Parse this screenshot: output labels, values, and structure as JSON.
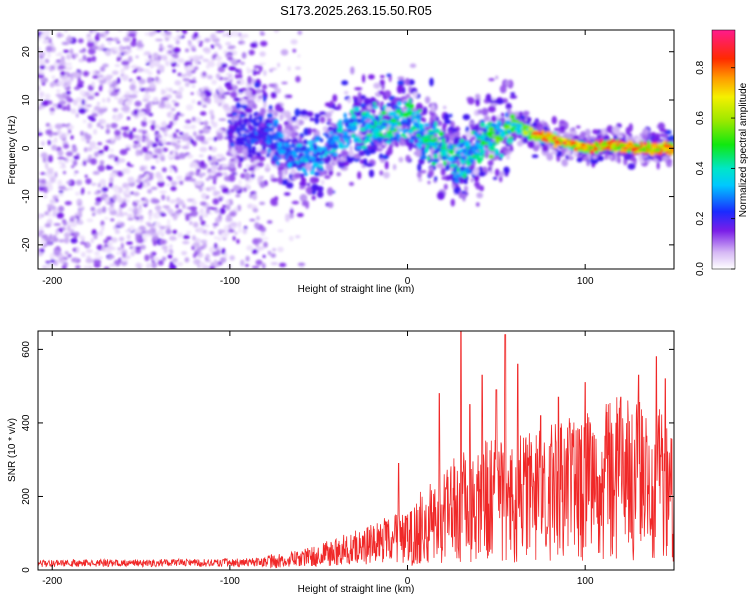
{
  "title": "S173.2025.263.15.50.R05",
  "chart_data": [
    {
      "type": "heatmap",
      "name": "spectrogram",
      "xlabel": "Height of straight line (km)",
      "ylabel": "Frequency (Hz)",
      "xlim": [
        -208,
        150
      ],
      "ylim": [
        -25,
        24.5
      ],
      "xticks": [
        -200,
        -100,
        0,
        100
      ],
      "xtick_labels": [
        "-200",
        "-100",
        "0",
        "100"
      ],
      "yticks": [
        -20,
        -10,
        0,
        10,
        20
      ],
      "ytick_labels": [
        "-20",
        "-10",
        "0",
        "10",
        "20"
      ],
      "colorbar": {
        "label": "Normalized spectral amplitude",
        "range": [
          0,
          0.95
        ],
        "ticks": [
          0.0,
          0.2,
          0.4,
          0.6,
          0.8
        ],
        "tick_labels": [
          "0.0",
          "0.2",
          "0.4",
          "0.6",
          "0.8"
        ],
        "colormap": "white-violet-blue-cyan-green-yellow-red-magenta"
      },
      "ridge": {
        "x": [
          -95,
          -80,
          -70,
          -60,
          -50,
          -40,
          -30,
          -20,
          -10,
          0,
          10,
          20,
          30,
          40,
          50,
          60,
          70,
          80,
          90,
          100,
          110,
          120,
          130,
          140,
          150
        ],
        "y": [
          4,
          3,
          0,
          -2,
          -2,
          2,
          4,
          5,
          4,
          7,
          2,
          0,
          -3,
          1,
          2,
          5,
          3,
          2,
          1,
          0,
          0.5,
          0.5,
          0,
          0,
          0
        ]
      },
      "amplitude": {
        "x": [
          -95,
          -60,
          -30,
          0,
          30,
          60,
          80,
          100,
          150
        ],
        "v": [
          0.15,
          0.25,
          0.3,
          0.35,
          0.35,
          0.45,
          0.6,
          0.8,
          0.85
        ]
      }
    },
    {
      "type": "line",
      "name": "snr",
      "xlabel": "Height of straight line (km)",
      "ylabel": "SNR (10 * v/v)",
      "xlim": [
        -208,
        150
      ],
      "ylim": [
        0,
        650
      ],
      "xticks": [
        -200,
        -100,
        0,
        100
      ],
      "xtick_labels": [
        "-200",
        "-100",
        "0",
        "100"
      ],
      "yticks": [
        0,
        200,
        400,
        600
      ],
      "ytick_labels": [
        "0",
        "200",
        "400",
        "600"
      ],
      "color": "#f02828",
      "trend": {
        "x": [
          -208,
          -100,
          -80,
          -60,
          -40,
          -20,
          0,
          20,
          40,
          60,
          80,
          100,
          120,
          140,
          150
        ],
        "y": [
          18,
          20,
          22,
          30,
          50,
          70,
          95,
          150,
          185,
          200,
          210,
          230,
          250,
          240,
          200
        ]
      },
      "peaks": {
        "x": [
          -5,
          18,
          30,
          35,
          42,
          50,
          55,
          62,
          75,
          85,
          100,
          120,
          130,
          140,
          145
        ],
        "y": [
          290,
          480,
          650,
          450,
          530,
          490,
          640,
          560,
          420,
          470,
          510,
          470,
          530,
          580,
          520
        ]
      }
    }
  ]
}
